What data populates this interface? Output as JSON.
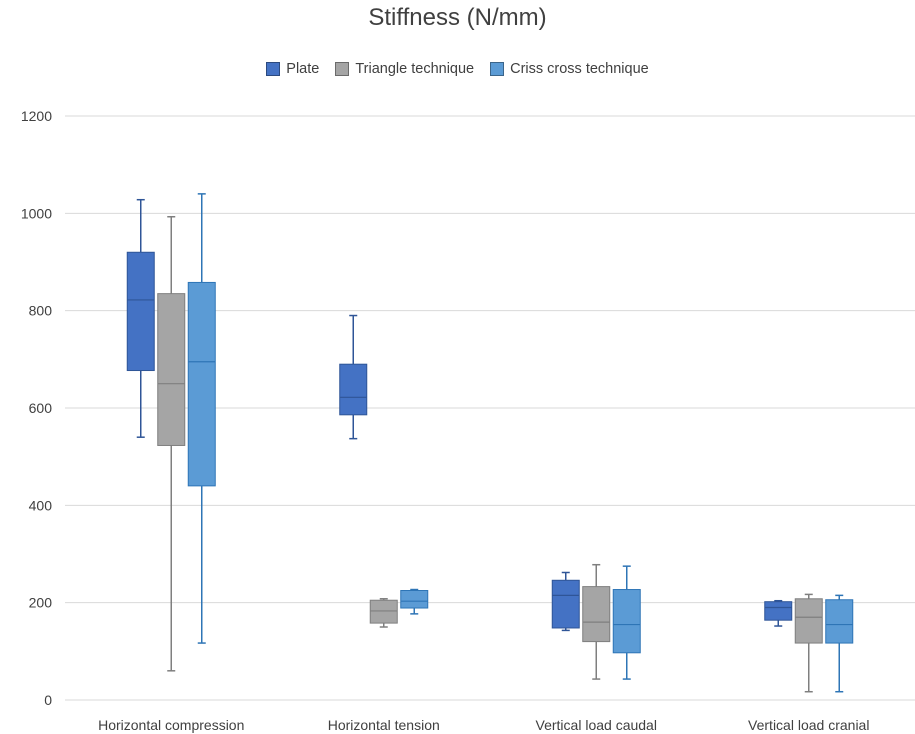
{
  "chart_data": {
    "type": "boxplot",
    "title": "Stiffness (N/mm)",
    "categories": [
      "Horizontal compression",
      "Horizontal tension",
      "Vertical load caudal",
      "Vertical load cranial"
    ],
    "ylim": [
      0,
      1200
    ],
    "yticks": [
      0,
      200,
      400,
      600,
      800,
      1000,
      1200
    ],
    "grid": true,
    "legend_position": "top",
    "series": [
      {
        "name": "Plate",
        "color": "#4472c4",
        "whisker_color": "#2f5597",
        "boxes": [
          {
            "min": 540,
            "q1": 677,
            "median": 822,
            "q3": 920,
            "max": 1028
          },
          {
            "min": 537,
            "q1": 586,
            "median": 622,
            "q3": 690,
            "max": 790
          },
          {
            "min": 143,
            "q1": 148,
            "median": 215,
            "q3": 246,
            "max": 262
          },
          {
            "min": 152,
            "q1": 164,
            "median": 190,
            "q3": 202,
            "max": 204
          }
        ]
      },
      {
        "name": "Triangle technique",
        "color": "#a5a5a5",
        "whisker_color": "#7f7f7f",
        "boxes": [
          {
            "min": 60,
            "q1": 523,
            "median": 650,
            "q3": 835,
            "max": 993
          },
          {
            "min": 150,
            "q1": 158,
            "median": 183,
            "q3": 205,
            "max": 208
          },
          {
            "min": 43,
            "q1": 120,
            "median": 160,
            "q3": 233,
            "max": 278
          },
          {
            "min": 17,
            "q1": 117,
            "median": 170,
            "q3": 208,
            "max": 217
          }
        ]
      },
      {
        "name": "Criss cross technique",
        "color": "#5b9bd5",
        "whisker_color": "#2e75b6",
        "boxes": [
          {
            "min": 117,
            "q1": 440,
            "median": 695,
            "q3": 858,
            "max": 1040
          },
          {
            "min": 177,
            "q1": 189,
            "median": 203,
            "q3": 225,
            "max": 227
          },
          {
            "min": 43,
            "q1": 97,
            "median": 155,
            "q3": 227,
            "max": 275
          },
          {
            "min": 17,
            "q1": 117,
            "median": 155,
            "q3": 206,
            "max": 215
          }
        ]
      }
    ]
  }
}
